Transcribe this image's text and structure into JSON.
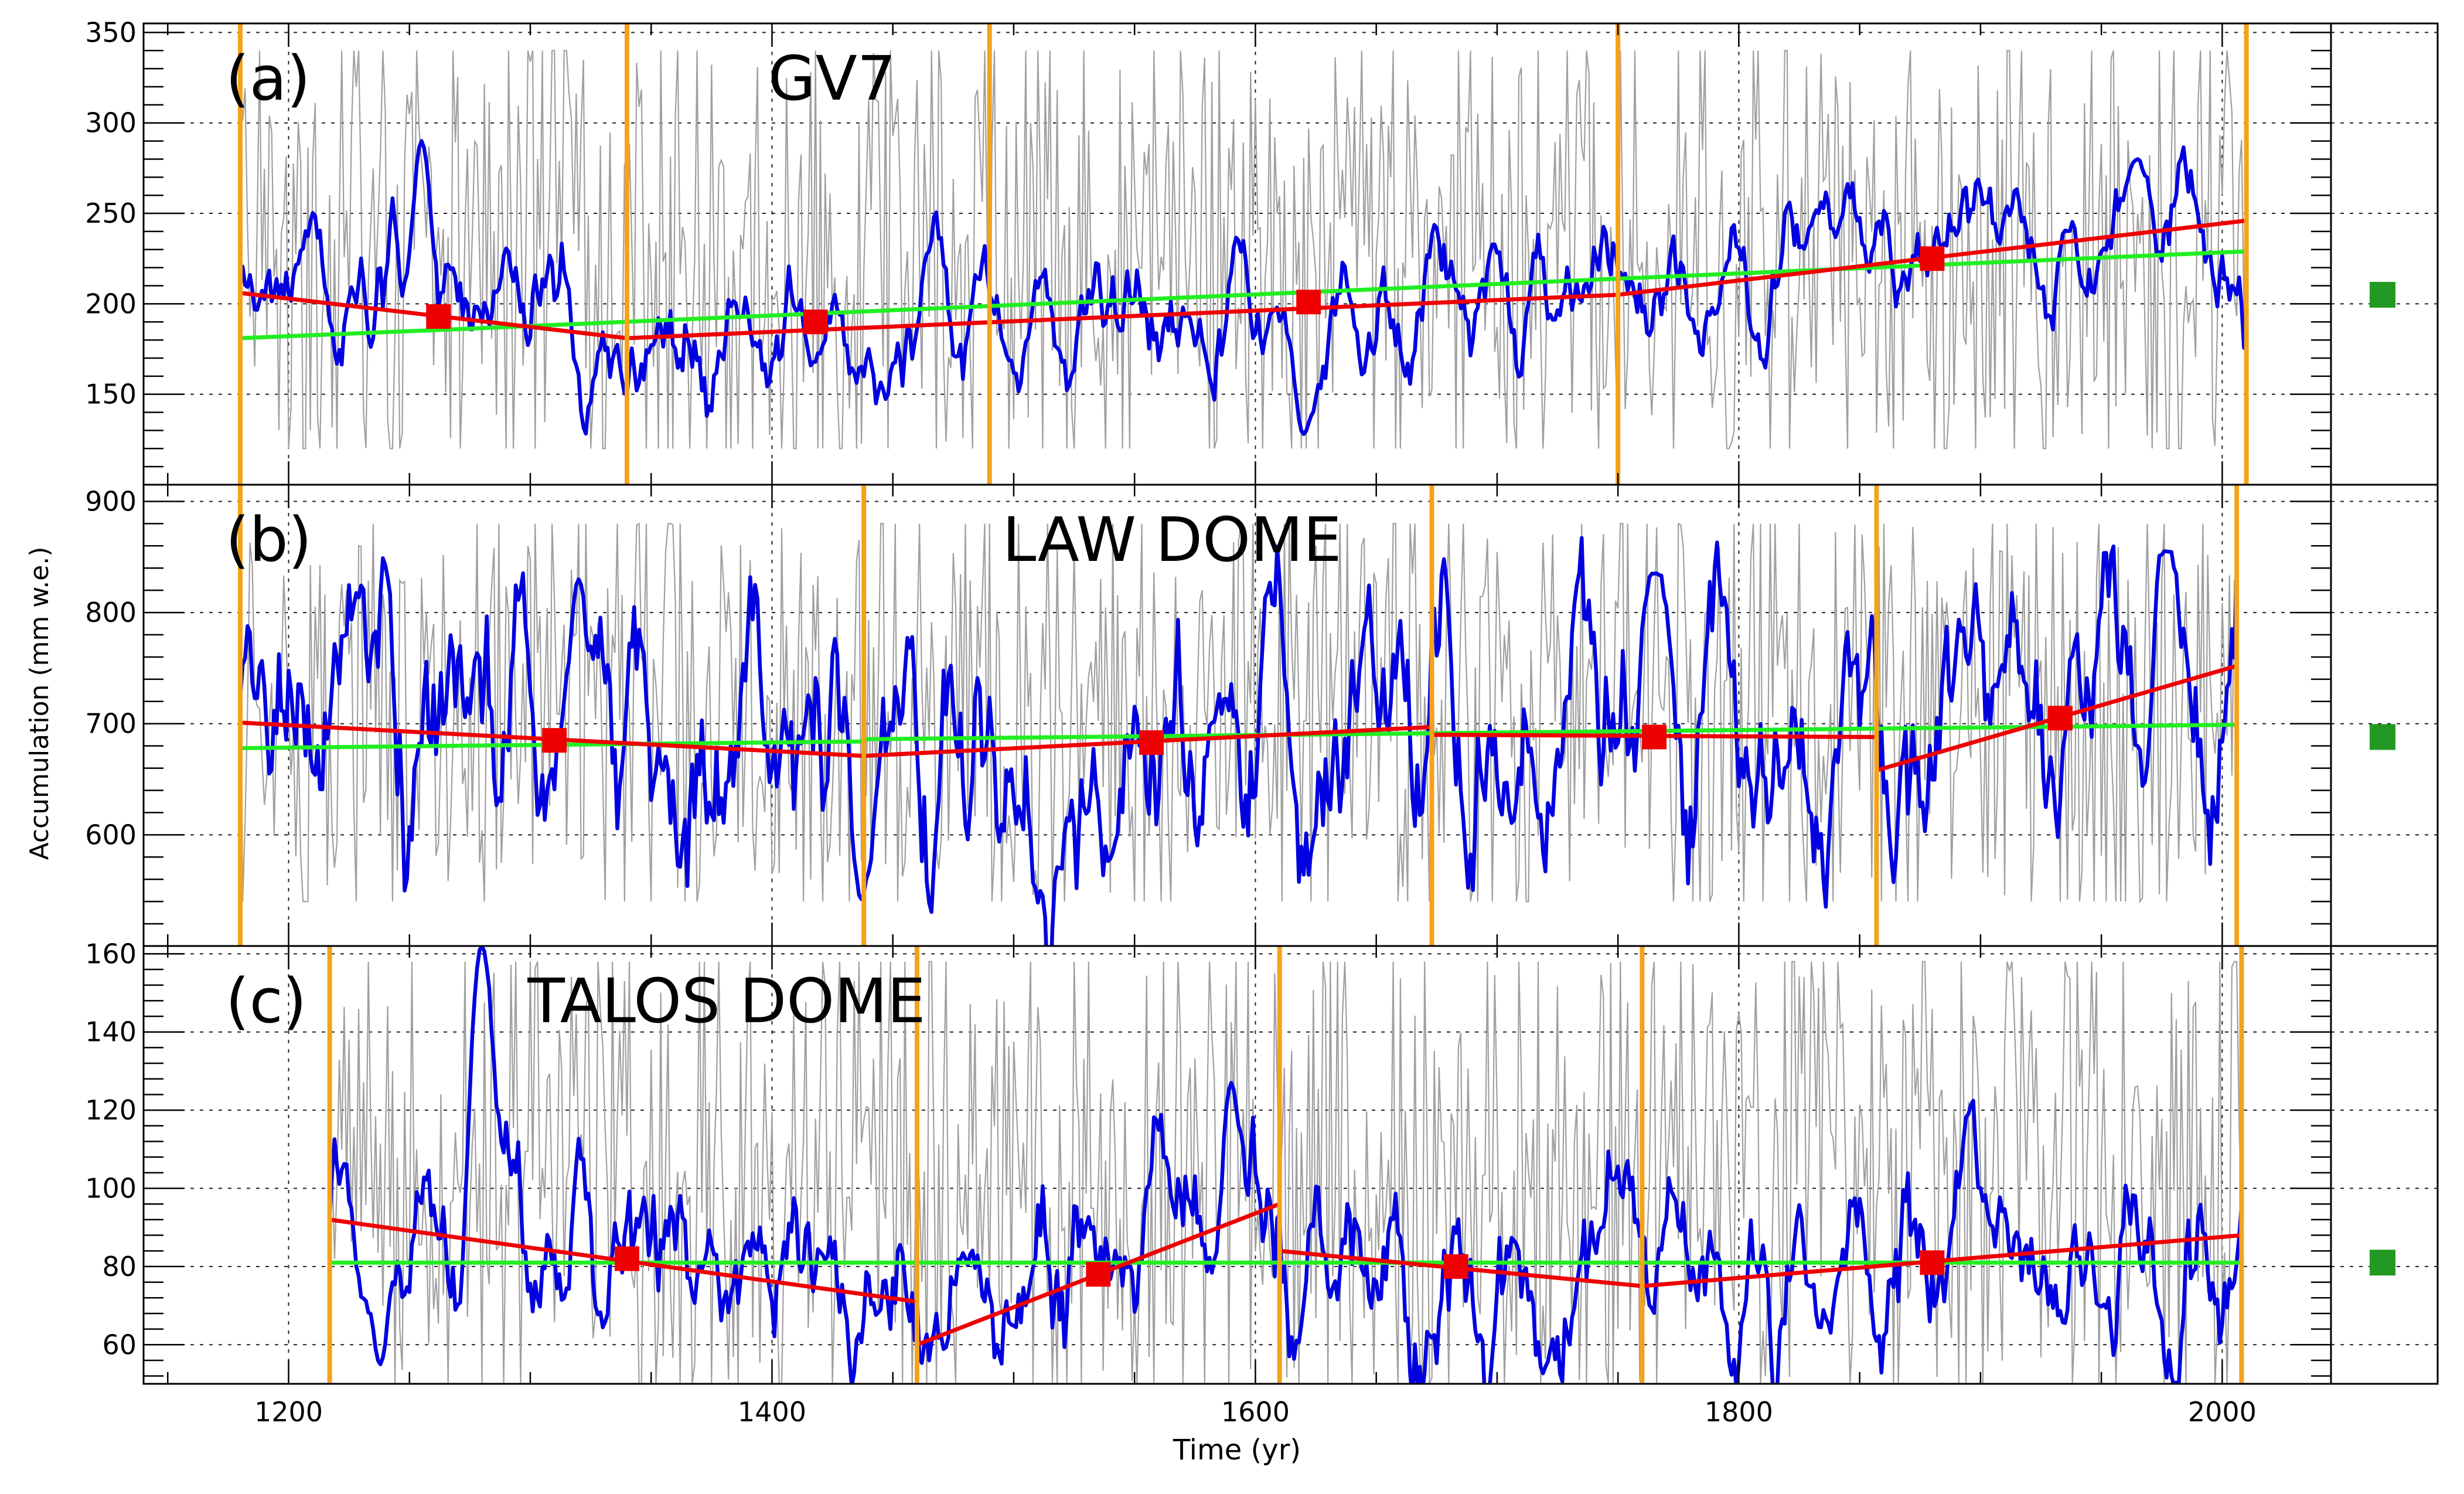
{
  "figure": {
    "ylabel": "Accumulation (mm w.e.)",
    "xlabel": "Time (yr)",
    "x_ticks": [
      1200,
      1400,
      1600,
      1800,
      2000
    ],
    "xlim": [
      1140,
      2045
    ]
  },
  "chart_data": [
    {
      "type": "line",
      "panel": "(a)",
      "title": "GV7",
      "ylim": [
        100,
        355
      ],
      "y_ticks": [
        150,
        200,
        250,
        300,
        350
      ],
      "y_tick_labels": [
        "150",
        "200",
        "250",
        "300",
        "350"
      ],
      "grid": true,
      "segment_bounds": [
        1180,
        1340,
        1490,
        1750,
        2010
      ],
      "colors": {
        "annual": "#a0a0a0",
        "smoothed": "#0000e0",
        "segment_trend": "#ee0000",
        "segment_mean_marker": "#ee0000",
        "long_trend": "#22ee22",
        "boundary": "#f5a21b",
        "overall_mean_marker": "#229922"
      },
      "annual_range": [
        120,
        340
      ],
      "smoothed_mean": 200,
      "smoothed_amp": 22,
      "smoothed_peaks": [
        [
          1255,
          290
        ],
        [
          1620,
          128
        ],
        [
          1965,
          280
        ]
      ],
      "segments": [
        {
          "x": [
            1180,
            1340
          ],
          "y": [
            206,
            181
          ],
          "mean_x": 1262,
          "mean": 193
        },
        {
          "x": [
            1340,
            1750
          ],
          "y": [
            181,
            205
          ],
          "mean_x": 1418,
          "mean": 190
        },
        {
          "x": [
            1750,
            2010
          ],
          "y": [
            205,
            246
          ],
          "mean_x": 1880,
          "mean": 225
        }
      ],
      "segment_means_extra": [
        {
          "x": 1622,
          "y": 201
        }
      ],
      "long_trend": [
        {
          "x": [
            1180,
            1270
          ],
          "y": [
            181,
            186
          ]
        },
        {
          "x": [
            1270,
            2010
          ],
          "y": [
            186,
            229
          ]
        }
      ],
      "overall_mean": 205
    },
    {
      "type": "line",
      "panel": "(b)",
      "title": "LAW DOME",
      "ylim": [
        500,
        915
      ],
      "y_ticks": [
        600,
        700,
        800,
        900
      ],
      "y_tick_labels": [
        "600",
        "700",
        "800",
        "900"
      ],
      "grid": true,
      "segment_bounds": [
        1180,
        1438,
        1673,
        1857,
        2006
      ],
      "colors": {
        "annual": "#a0a0a0",
        "smoothed": "#0000e0",
        "segment_trend": "#ee0000",
        "segment_mean_marker": "#ee0000",
        "long_trend": "#22ee22",
        "boundary": "#f5a21b",
        "overall_mean_marker": "#229922"
      },
      "annual_range": [
        540,
        880
      ],
      "smoothed_mean": 685,
      "smoothed_amp": 70,
      "smoothed_peaks": [
        [
          1320,
          830
        ],
        [
          1437,
          542
        ],
        [
          1765,
          835
        ],
        [
          1977,
          855
        ]
      ],
      "segments": [
        {
          "x": [
            1180,
            1438
          ],
          "y": [
            701,
            671
          ],
          "mean_x": 1310,
          "mean": 685
        },
        {
          "x": [
            1438,
            1673
          ],
          "y": [
            671,
            697
          ],
          "mean_x": 1557,
          "mean": 683
        },
        {
          "x": [
            1673,
            1857
          ],
          "y": [
            690,
            688
          ],
          "mean_x": 1765,
          "mean": 688
        },
        {
          "x": [
            1857,
            2006
          ],
          "y": [
            658,
            752
          ],
          "mean_x": 1933,
          "mean": 705
        }
      ],
      "segment_means_extra": [],
      "long_trend": [
        {
          "x": [
            1180,
            1438
          ],
          "y": [
            678,
            684
          ]
        },
        {
          "x": [
            1438,
            2006
          ],
          "y": [
            686,
            699
          ]
        }
      ],
      "overall_mean": 688
    },
    {
      "type": "line",
      "panel": "(c)",
      "title": "TALOS DOME",
      "ylim": [
        50,
        162
      ],
      "y_ticks": [
        60,
        80,
        100,
        120,
        140,
        160
      ],
      "y_tick_labels": [
        "60",
        "80",
        "100",
        "120",
        "140",
        "160"
      ],
      "grid": true,
      "segment_bounds": [
        1217,
        1460,
        1610,
        1760,
        2008
      ],
      "colors": {
        "annual": "#a0a0a0",
        "smoothed": "#0000e0",
        "segment_trend": "#ee0000",
        "segment_mean_marker": "#ee0000",
        "long_trend": "#22ee22",
        "boundary": "#f5a21b",
        "overall_mean_marker": "#229922"
      },
      "annual_range": [
        50,
        158
      ],
      "smoothed_mean": 80,
      "smoothed_amp": 14,
      "smoothed_peaks": [
        [
          1280,
          162
        ],
        [
          1590,
          127
        ],
        [
          1238,
          55
        ]
      ],
      "segments": [
        {
          "x": [
            1217,
            1460
          ],
          "y": [
            92,
            71
          ],
          "mean_x": 1340,
          "mean": 82
        },
        {
          "x": [
            1460,
            1610
          ],
          "y": [
            60,
            96
          ],
          "mean_x": 1535,
          "mean": 78
        },
        {
          "x": [
            1610,
            1760
          ],
          "y": [
            84,
            75
          ],
          "mean_x": 1683,
          "mean": 80
        },
        {
          "x": [
            1760,
            2008
          ],
          "y": [
            75,
            88
          ],
          "mean_x": 1880,
          "mean": 81
        }
      ],
      "segment_means_extra": [],
      "long_trend": [
        {
          "x": [
            1217,
            2008
          ],
          "y": [
            81,
            81
          ]
        }
      ],
      "overall_mean": 81
    }
  ]
}
